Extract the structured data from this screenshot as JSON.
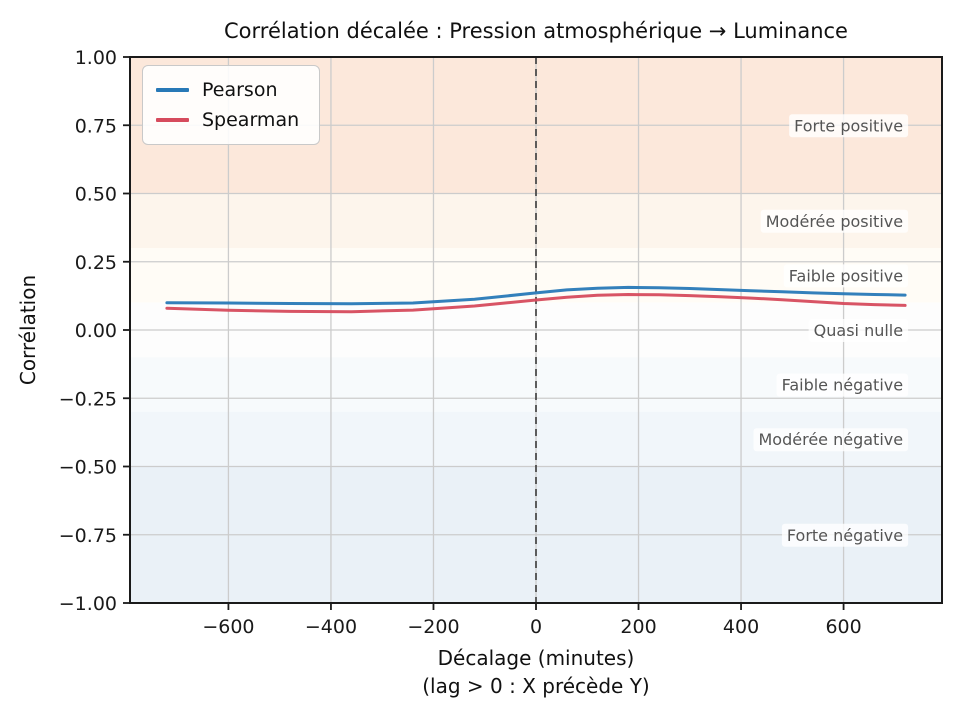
{
  "chart_data": {
    "type": "line",
    "title": "Corrélation décalée : Pression atmosphérique → Luminance",
    "xlabel": "Décalage (minutes)",
    "xlabel_sub": "(lag > 0 : X précède Y)",
    "ylabel": "Corrélation",
    "xlim": [
      -792,
      792
    ],
    "ylim": [
      -1.0,
      1.0
    ],
    "grid": true,
    "legend_position": "upper-left",
    "xticks": [
      {
        "v": -600,
        "label": "−600"
      },
      {
        "v": -400,
        "label": "−400"
      },
      {
        "v": -200,
        "label": "−200"
      },
      {
        "v": 0,
        "label": "0"
      },
      {
        "v": 200,
        "label": "200"
      },
      {
        "v": 400,
        "label": "400"
      },
      {
        "v": 600,
        "label": "600"
      }
    ],
    "yticks": [
      {
        "v": 1.0,
        "label": "1.00"
      },
      {
        "v": 0.75,
        "label": "0.75"
      },
      {
        "v": 0.5,
        "label": "0.50"
      },
      {
        "v": 0.25,
        "label": "0.25"
      },
      {
        "v": 0.0,
        "label": "0.00"
      },
      {
        "v": -0.25,
        "label": "−0.25"
      },
      {
        "v": -0.5,
        "label": "−0.50"
      },
      {
        "v": -0.75,
        "label": "−0.75"
      },
      {
        "v": -1.0,
        "label": "−1.00"
      }
    ],
    "zero_lag_line": {
      "x": 0,
      "style": "dashed",
      "color": "#444444"
    },
    "x": [
      -720,
      -600,
      -480,
      -360,
      -240,
      -120,
      -60,
      0,
      60,
      120,
      180,
      240,
      300,
      360,
      420,
      480,
      540,
      600,
      660,
      720
    ],
    "series": [
      {
        "name": "Pearson",
        "color": "#2879b7",
        "values": [
          0.1,
          0.099,
          0.097,
          0.096,
          0.099,
          0.113,
          0.124,
          0.136,
          0.147,
          0.153,
          0.156,
          0.155,
          0.152,
          0.148,
          0.144,
          0.14,
          0.136,
          0.133,
          0.13,
          0.128
        ]
      },
      {
        "name": "Spearman",
        "color": "#d64b5d",
        "values": [
          0.08,
          0.072,
          0.068,
          0.067,
          0.073,
          0.088,
          0.099,
          0.11,
          0.12,
          0.127,
          0.13,
          0.129,
          0.126,
          0.122,
          0.117,
          0.111,
          0.104,
          0.097,
          0.093,
          0.09
        ]
      }
    ],
    "zones": [
      {
        "label": "Forte positive",
        "from": 0.5,
        "to": 1.0,
        "label_y": 0.75,
        "color": "#fce8db"
      },
      {
        "label": "Modérée positive",
        "from": 0.3,
        "to": 0.5,
        "label_y": 0.4,
        "color": "#fdf5ec"
      },
      {
        "label": "Faible positive",
        "from": 0.1,
        "to": 0.3,
        "label_y": 0.2,
        "color": "#fffcf6"
      },
      {
        "label": "Quasi nulle",
        "from": -0.1,
        "to": 0.1,
        "label_y": 0.0,
        "color": "#fdfdfd"
      },
      {
        "label": "Faible négative",
        "from": -0.3,
        "to": -0.1,
        "label_y": -0.2,
        "color": "#f7fafc"
      },
      {
        "label": "Modérée négative",
        "from": -0.5,
        "to": -0.3,
        "label_y": -0.4,
        "color": "#f1f6fa"
      },
      {
        "label": "Forte négative",
        "from": -1.0,
        "to": -0.5,
        "label_y": -0.75,
        "color": "#eaf1f7"
      }
    ],
    "zone_label_anchor_x": 720
  },
  "styles": {
    "grid_color": "#cccccc",
    "spine_color": "#1a1a1a",
    "tick_label_color": "#1a1a1a",
    "zone_label_color": "#555555",
    "zone_label_bg": "#ffffff",
    "dashed_line_color": "#444444",
    "background": "#ffffff"
  }
}
